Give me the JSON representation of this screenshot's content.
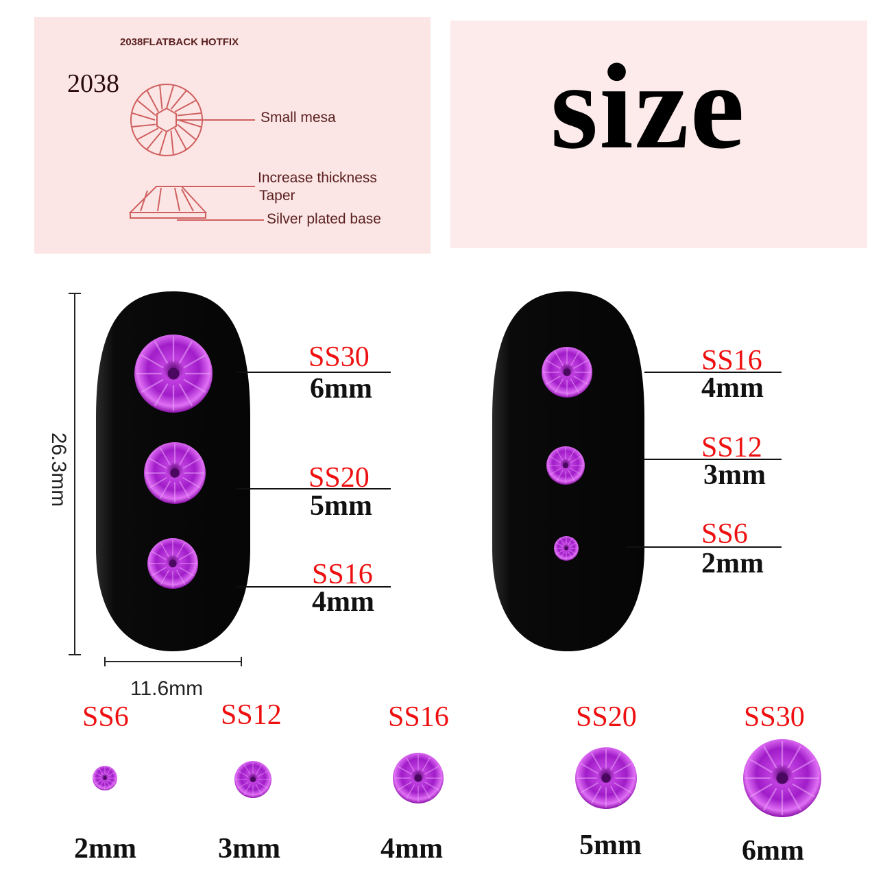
{
  "diagram": {
    "header": "2038FLATBACK HOTFIX",
    "model": "2038",
    "labels": {
      "small_mesa": "Small mesa",
      "increase_thickness": "Increase thickness",
      "taper": "Taper",
      "silver_base": "Silver plated base"
    }
  },
  "title": "size",
  "dimensions": {
    "height": "26.3mm",
    "width": "11.6mm"
  },
  "left_nail": [
    {
      "code": "SS30",
      "size": "6mm"
    },
    {
      "code": "SS20",
      "size": "5mm"
    },
    {
      "code": "SS16",
      "size": "4mm"
    }
  ],
  "right_nail": [
    {
      "code": "SS16",
      "size": "4mm"
    },
    {
      "code": "SS12",
      "size": "3mm"
    },
    {
      "code": "SS6",
      "size": "2mm"
    }
  ],
  "bottom_row": [
    {
      "code": "SS6",
      "size": "2mm"
    },
    {
      "code": "SS12",
      "size": "3mm"
    },
    {
      "code": "SS16",
      "size": "4mm"
    },
    {
      "code": "SS20",
      "size": "5mm"
    },
    {
      "code": "SS30",
      "size": "6mm"
    }
  ],
  "colors": {
    "label_red": "#ee1010",
    "gem": "#b41fd6",
    "panel": "#fbe6e5",
    "diagram_line": "#d06060"
  }
}
